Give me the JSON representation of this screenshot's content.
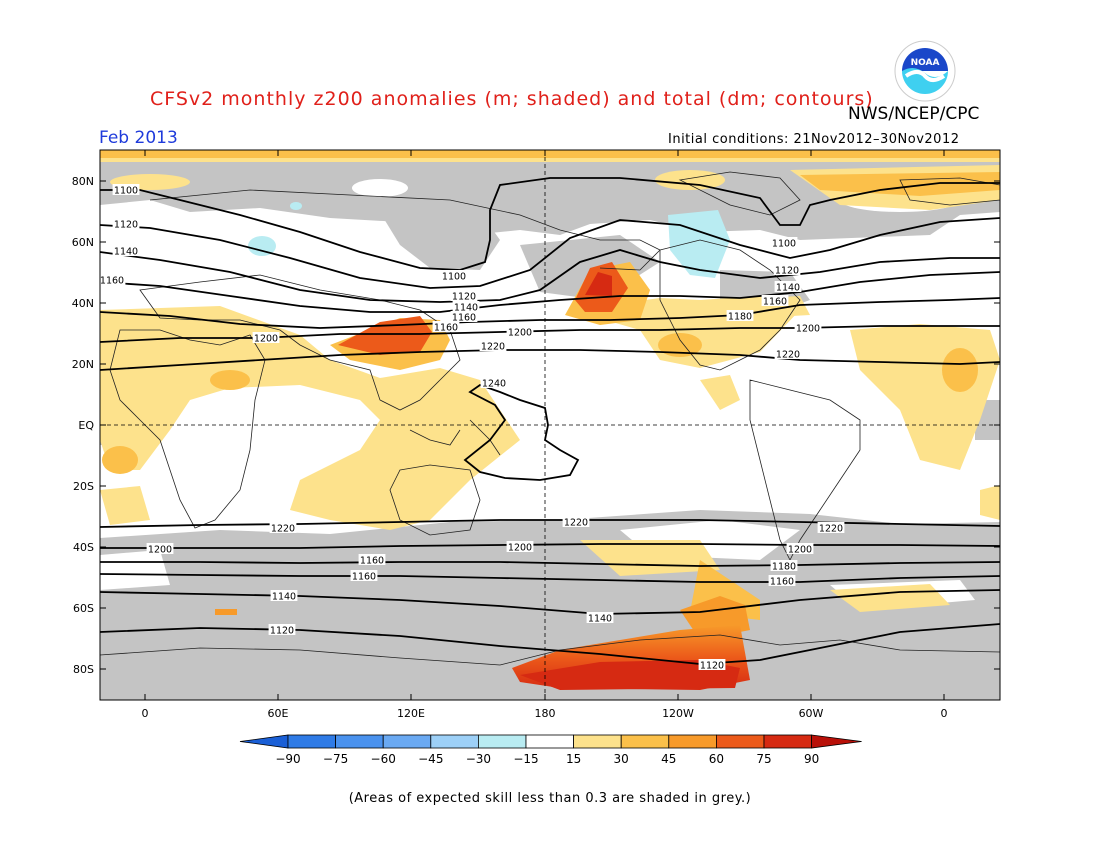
{
  "header": {
    "title": "CFSv2 monthly z200 anomalies (m; shaded) and total (dm; contours)",
    "agency": "NWS/NCEP/CPC",
    "month": "Feb 2013",
    "initial_conditions": "Initial conditions: 21Nov2012–30Nov2012"
  },
  "logo": {
    "text": "NOAA"
  },
  "map": {
    "lat_labels": [
      "80N",
      "60N",
      "40N",
      "20N",
      "EQ",
      "20S",
      "40S",
      "60S",
      "80S"
    ],
    "lon_labels": [
      "0",
      "60E",
      "120E",
      "180",
      "120W",
      "60W",
      "0"
    ],
    "contour_labels": [
      "1100",
      "1120",
      "1140",
      "1160",
      "1180",
      "1200",
      "1220",
      "1240"
    ]
  },
  "colorbar": {
    "labels": [
      "−90",
      "−75",
      "−60",
      "−45",
      "−30",
      "−15",
      "15",
      "30",
      "45",
      "60",
      "75",
      "90"
    ],
    "colors": [
      "#1a5fd6",
      "#2f7be6",
      "#4a92ee",
      "#6aa9f2",
      "#9dd0f7",
      "#b9ecf2",
      "#ffffff",
      "#fde28c",
      "#fbc04a",
      "#f79a2a",
      "#ec5a1a",
      "#d62a12",
      "#b81008"
    ]
  },
  "footer": {
    "note": "(Areas of expected skill less than 0.3 are shaded in grey.)"
  },
  "palette": {
    "grey": "#c4c4c4",
    "title_red": "#e0201a",
    "month_blue": "#1f3bdb"
  }
}
